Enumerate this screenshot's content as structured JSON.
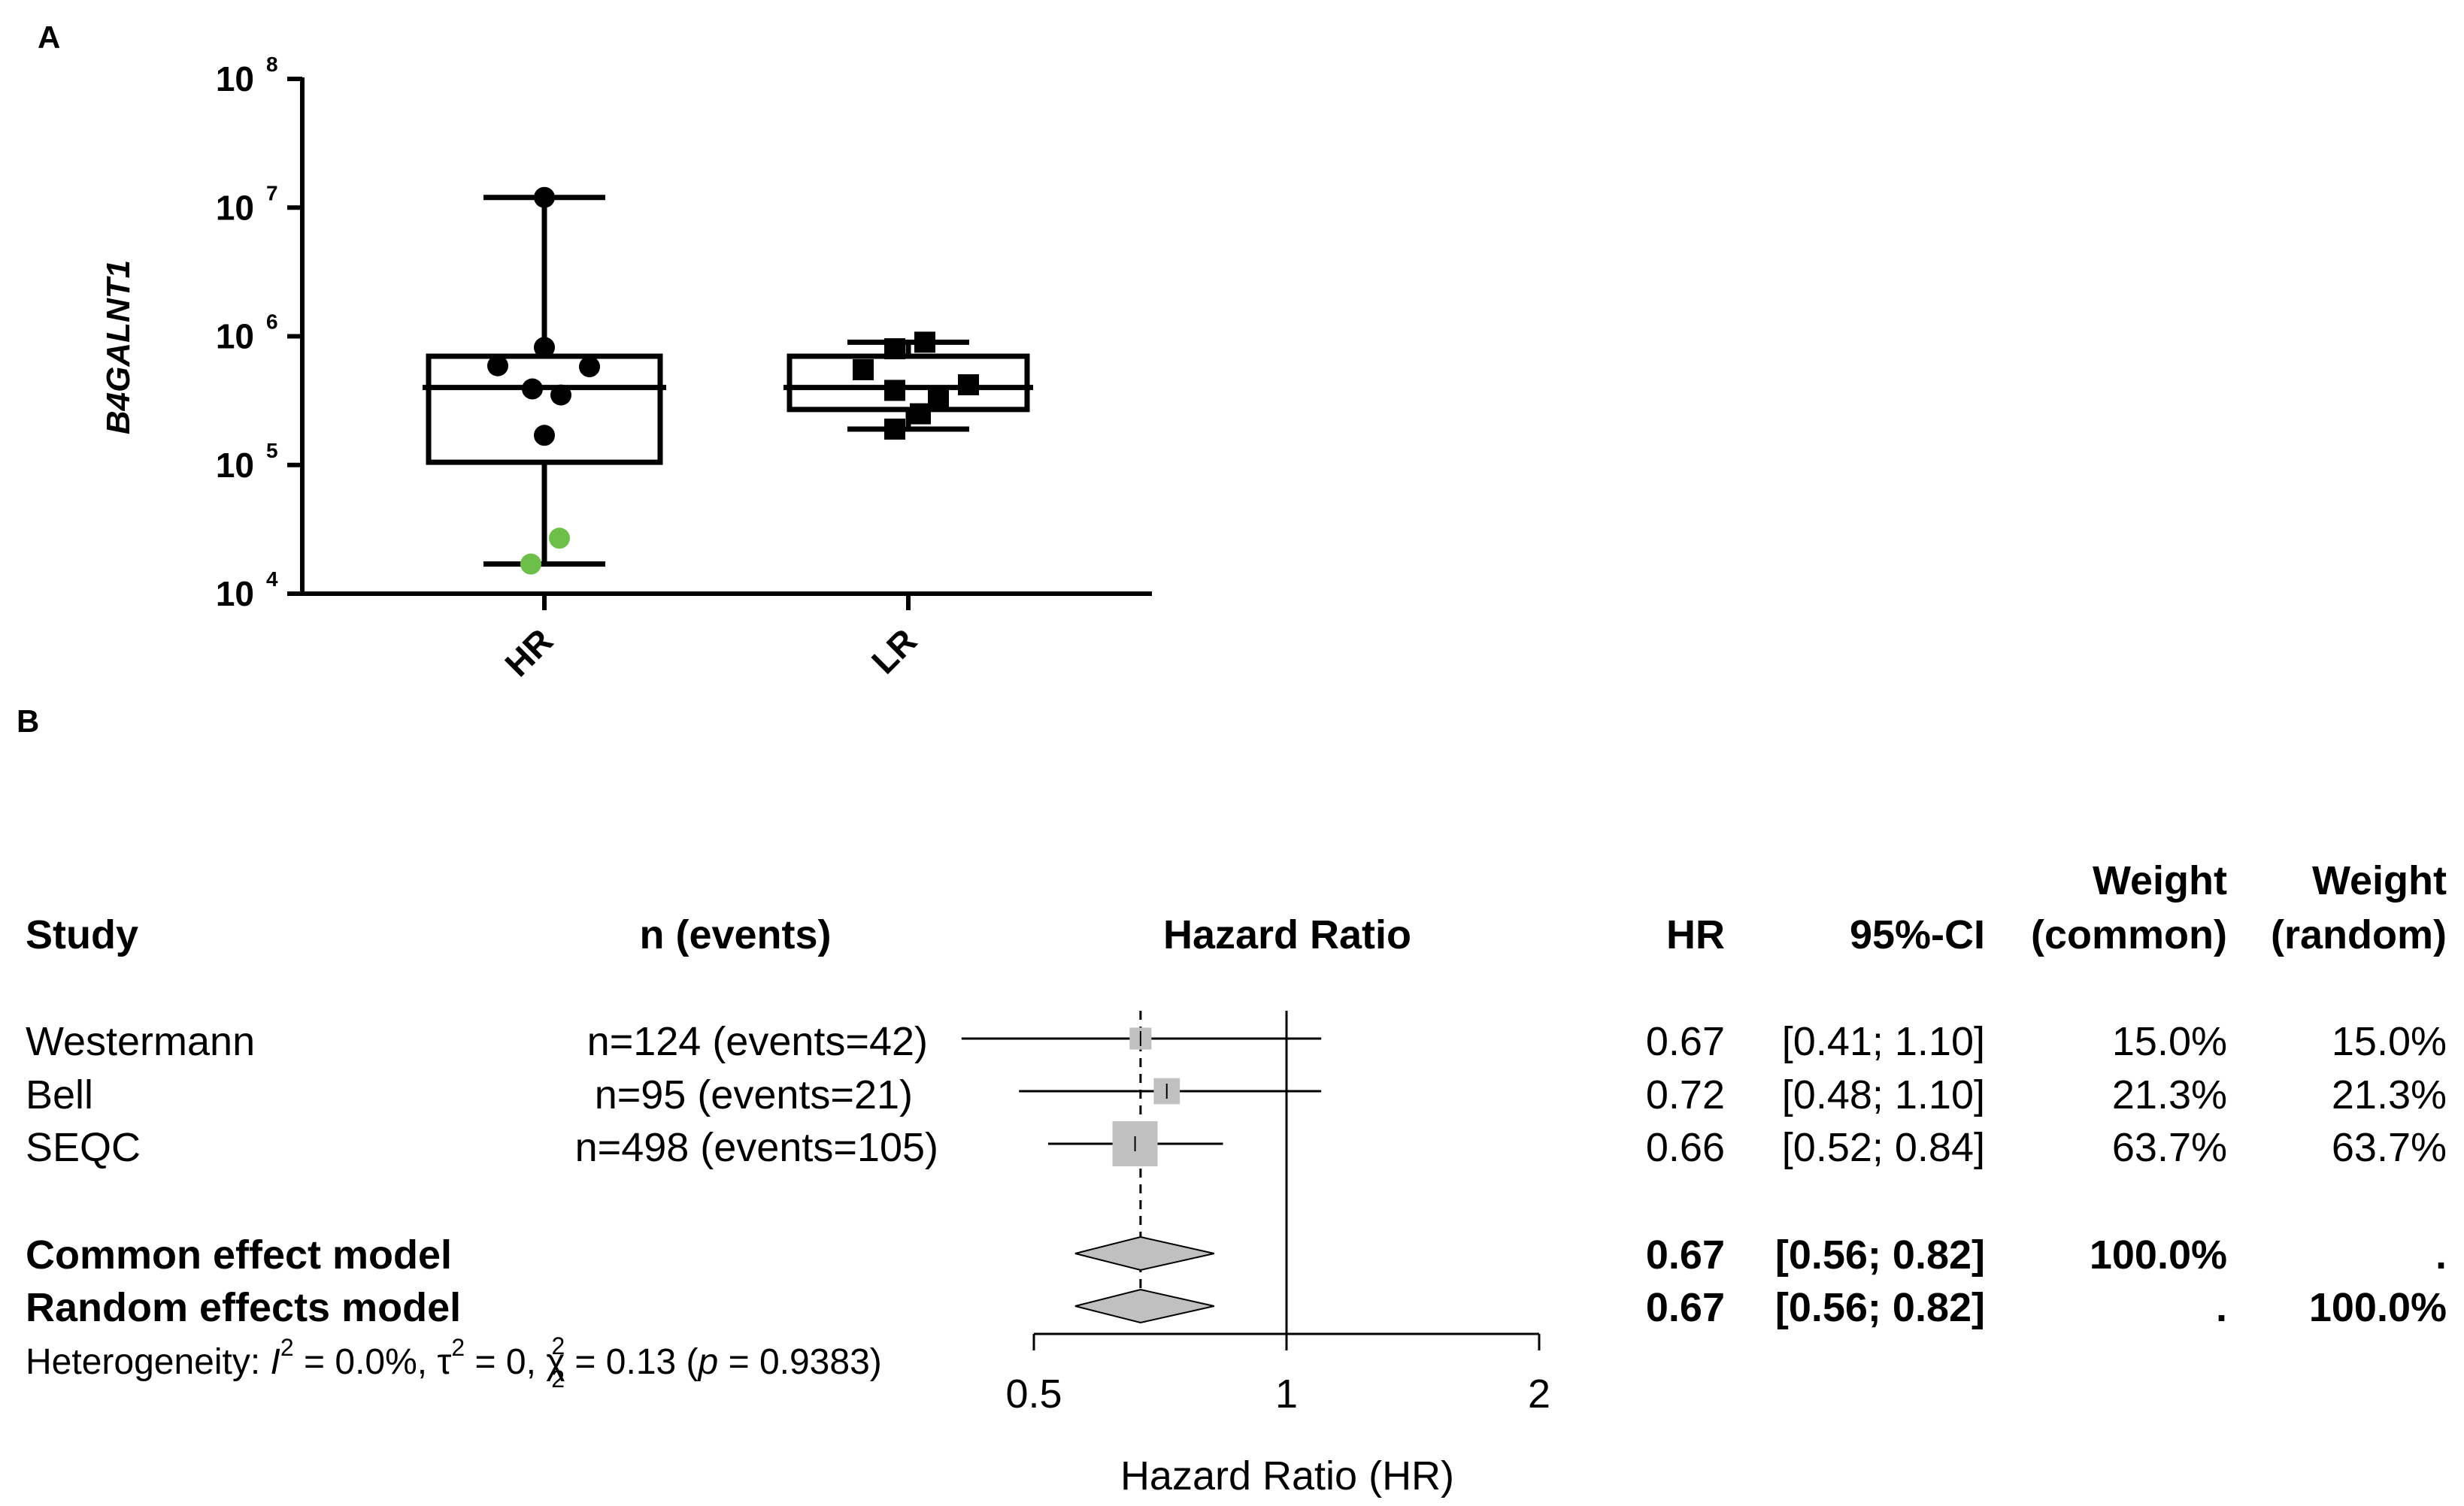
{
  "panel_a": {
    "label": "A",
    "chart_data": {
      "type": "box",
      "ylabel": "B4GALNT1",
      "yscale": "log",
      "ylim": [
        10000,
        100000000
      ],
      "yticks": [
        {
          "base": "10",
          "exp": "4"
        },
        {
          "base": "10",
          "exp": "5"
        },
        {
          "base": "10",
          "exp": "6"
        },
        {
          "base": "10",
          "exp": "7"
        },
        {
          "base": "10",
          "exp": "8"
        }
      ],
      "categories": [
        "HR",
        "LR"
      ],
      "boxes": [
        {
          "category": "HR",
          "min": 17000,
          "q1": 105000,
          "median": 400000,
          "q3": 700000,
          "max": 12000000
        },
        {
          "category": "LR",
          "min": 190000,
          "q1": 270000,
          "median": 400000,
          "q3": 700000,
          "max": 900000
        }
      ],
      "points": [
        {
          "category": "HR",
          "marker": "circle",
          "color": "#000000",
          "values": [
            12000000,
            820000,
            590000,
            580000,
            390000,
            350000,
            170000
          ]
        },
        {
          "category": "HR",
          "marker": "circle",
          "color": "#6cc04a",
          "values": [
            27000,
            17000
          ]
        },
        {
          "category": "LR",
          "marker": "square",
          "color": "#000000",
          "values": [
            900000,
            800000,
            550000,
            380000,
            420000,
            330000,
            250000,
            190000
          ]
        }
      ]
    }
  },
  "panel_b": {
    "label": "B",
    "headers": {
      "study": "Study",
      "n": "n (events)",
      "plot": "Hazard Ratio",
      "hr": "HR",
      "ci": "95%-CI",
      "weight_common_1": "Weight",
      "weight_common_2": "(common)",
      "weight_random_1": "Weight",
      "weight_random_2": "(random)"
    },
    "studies": [
      {
        "name": "Westermann",
        "n": "n=124 (events=42)",
        "hr": "0.67",
        "ci": "[0.41; 1.10]",
        "w_common": "15.0%",
        "w_random": "15.0%"
      },
      {
        "name": "Bell",
        "n": "n=95 (events=21)",
        "hr": "0.72",
        "ci": "[0.48; 1.10]",
        "w_common": "21.3%",
        "w_random": "21.3%"
      },
      {
        "name": "SEQC",
        "n": "n=498 (events=105)",
        "hr": "0.66",
        "ci": "[0.52; 0.84]",
        "w_common": "63.7%",
        "w_random": "63.7%"
      }
    ],
    "models": [
      {
        "name": "Common effect model",
        "hr": "0.67",
        "ci": "[0.56; 0.82]",
        "w_common": "100.0%",
        "w_random": "."
      },
      {
        "name": "Random effects model",
        "hr": "0.67",
        "ci": "[0.56; 0.82]",
        "w_common": ".",
        "w_random": "100.0%"
      }
    ],
    "heterogeneity": {
      "prefix": "Heterogeneity: ",
      "i_sym": "I",
      "i_sup": "2",
      "i_val": " = 0.0%, ",
      "tau_sym": "τ",
      "tau_sup": "2",
      "tau_val": " = 0, ",
      "chi_sym": "χ",
      "chi_sup": "2",
      "chi_sub": "2",
      "chi_val": " = 0.13 (",
      "p_sym": "p",
      "p_val": " = 0.9383)"
    },
    "chart_data": {
      "type": "forest",
      "xlabel": "Hazard Ratio (HR)",
      "xscale": "log",
      "xlim": [
        0.5,
        2
      ],
      "xticks": [
        "0.5",
        "1",
        "2"
      ],
      "null_value": 1,
      "pooled_reference": 0.67,
      "studies": [
        {
          "name": "Westermann",
          "hr": 0.67,
          "lower": 0.41,
          "upper": 1.1,
          "weight": 15.0
        },
        {
          "name": "Bell",
          "hr": 0.72,
          "lower": 0.48,
          "upper": 1.1,
          "weight": 21.3
        },
        {
          "name": "SEQC",
          "hr": 0.66,
          "lower": 0.52,
          "upper": 0.84,
          "weight": 63.7
        }
      ],
      "pooled": [
        {
          "name": "Common effect model",
          "hr": 0.67,
          "lower": 0.56,
          "upper": 0.82
        },
        {
          "name": "Random effects model",
          "hr": 0.67,
          "lower": 0.56,
          "upper": 0.82
        }
      ],
      "colors": {
        "square": "#c0c0c0",
        "diamond": "#c0c0c0",
        "line": "#000000"
      }
    }
  }
}
